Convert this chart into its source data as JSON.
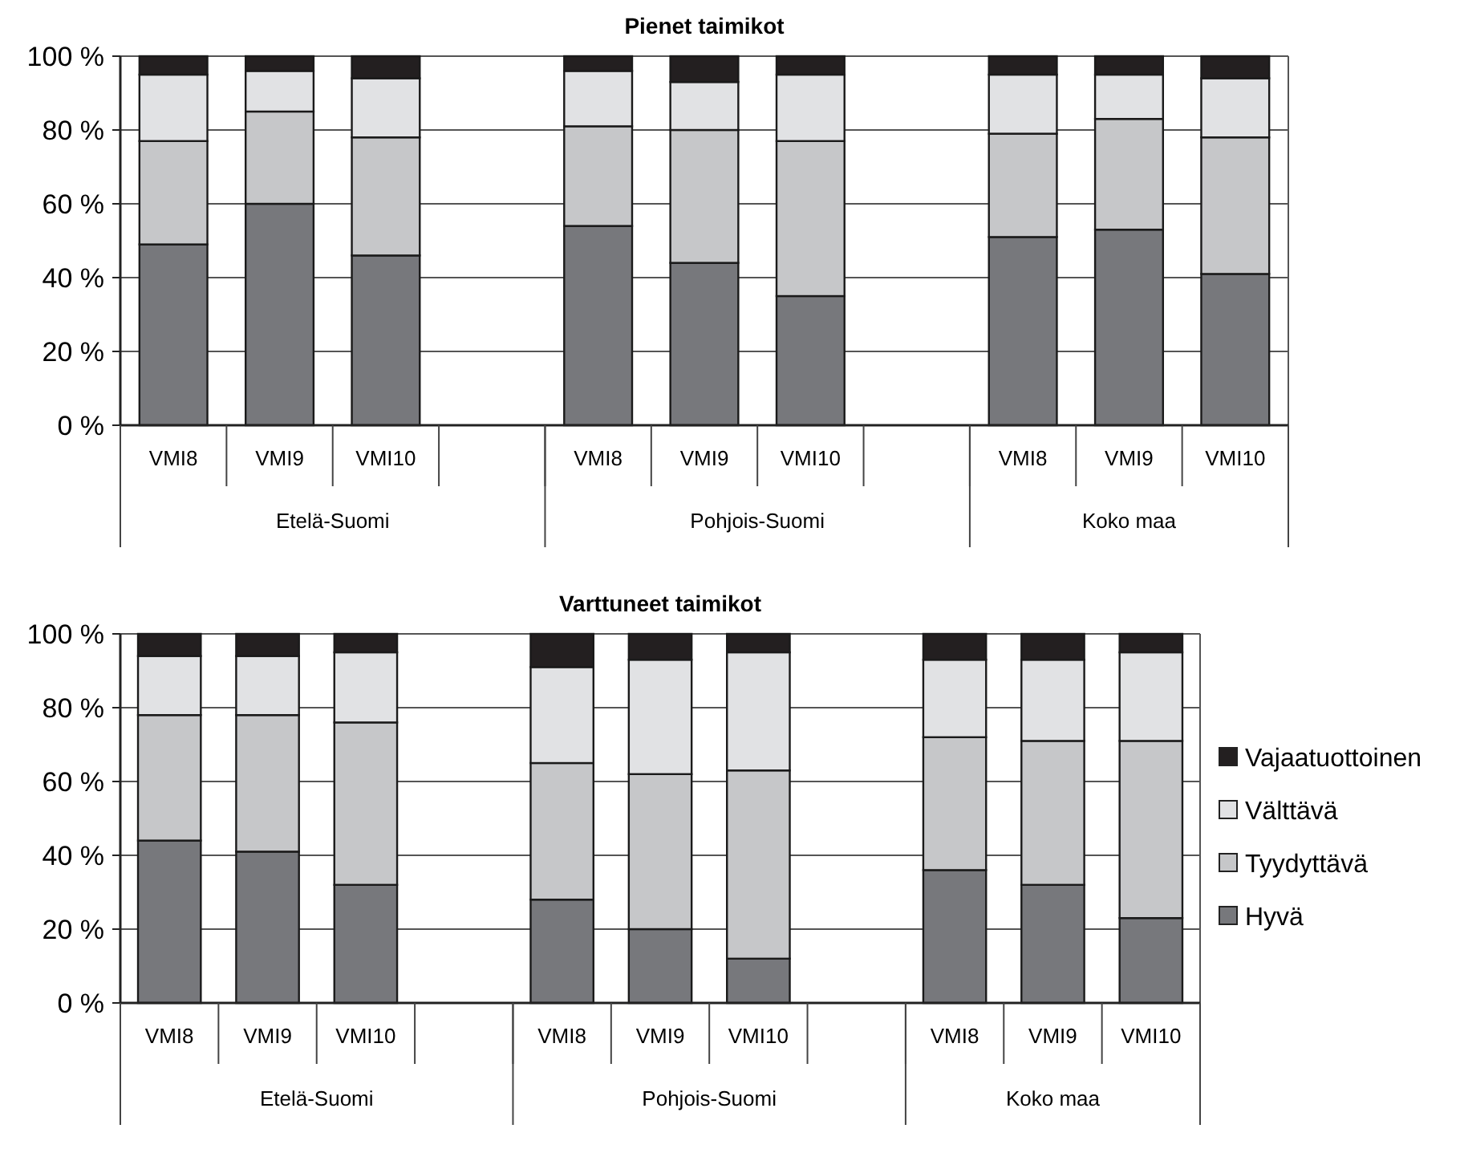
{
  "chart_data": [
    {
      "type": "bar",
      "title": "Pienet taimikot",
      "stacked": true,
      "categories": [
        "VMI8",
        "VMI9",
        "VMI10",
        null,
        "VMI8",
        "VMI9",
        "VMI10",
        null,
        "VMI8",
        "VMI9",
        "VMI10"
      ],
      "series": [
        {
          "color": "#77787c",
          "values": [
            49,
            60,
            46,
            null,
            54,
            44,
            35,
            null,
            51,
            53,
            41
          ]
        },
        {
          "color": "#c6c7c9",
          "values": [
            28,
            25,
            32,
            null,
            27,
            36,
            42,
            null,
            28,
            30,
            37
          ]
        },
        {
          "color": "#e1e2e4",
          "values": [
            18,
            11,
            16,
            null,
            15,
            13,
            18,
            null,
            16,
            12,
            16
          ]
        },
        {
          "color": "#231f20",
          "values": [
            5,
            4,
            6,
            null,
            4,
            7,
            5,
            null,
            5,
            5,
            6
          ]
        }
      ],
      "annotations": [
        "Etelä-Suomi",
        "Pohjois-Suomi",
        "Koko maa"
      ],
      "ylim": [
        0,
        100
      ],
      "yticks": [
        {
          "value": 0,
          "label": "0 %"
        },
        {
          "value": 20,
          "label": "20 %"
        },
        {
          "value": 40,
          "label": "40 %"
        },
        {
          "value": 60,
          "label": "60 %"
        },
        {
          "value": 80,
          "label": "80 %"
        },
        {
          "value": 100,
          "label": "100 %"
        }
      ],
      "grid": "y",
      "legend": false
    },
    {
      "type": "bar",
      "title": "Varttuneet taimikot",
      "stacked": true,
      "categories": [
        "VMI8",
        "VMI9",
        "VMI10",
        null,
        "VMI8",
        "VMI9",
        "VMI10",
        null,
        "VMI8",
        "VMI9",
        "VMI10"
      ],
      "series": [
        {
          "name": "Hyvä",
          "color": "#77787c",
          "values": [
            44,
            41,
            32,
            null,
            28,
            20,
            12,
            null,
            36,
            32,
            23
          ]
        },
        {
          "name": "Tyydyttävä",
          "color": "#c6c7c9",
          "values": [
            34,
            37,
            44,
            null,
            37,
            42,
            51,
            null,
            36,
            39,
            48
          ]
        },
        {
          "name": "Välttävä",
          "color": "#e1e2e4",
          "values": [
            16,
            16,
            19,
            null,
            26,
            31,
            32,
            null,
            21,
            22,
            24
          ]
        },
        {
          "name": "Vajaatuottoinen",
          "color": "#231f20",
          "values": [
            6,
            6,
            5,
            null,
            9,
            7,
            5,
            null,
            7,
            7,
            5
          ]
        }
      ],
      "annotations": [
        "Etelä-Suomi",
        "Pohjois-Suomi",
        "Koko maa"
      ],
      "ylim": [
        0,
        100
      ],
      "yticks": [
        {
          "value": 0,
          "label": "0 %"
        },
        {
          "value": 20,
          "label": "20 %"
        },
        {
          "value": 40,
          "label": "40 %"
        },
        {
          "value": 60,
          "label": "60 %"
        },
        {
          "value": 80,
          "label": "80 %"
        },
        {
          "value": 100,
          "label": "100 %"
        }
      ],
      "grid": "y",
      "legend": "right"
    }
  ]
}
